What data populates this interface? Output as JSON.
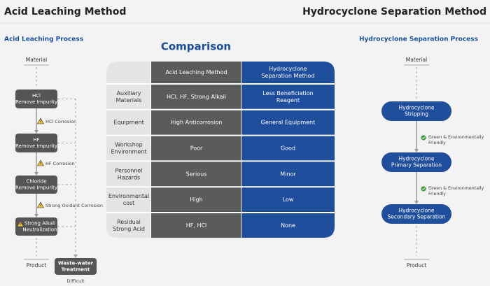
{
  "left": {
    "title": "Acid Leaching Method",
    "subtitle": "Acid Leaching Process",
    "flow": {
      "start": "Material",
      "steps": [
        {
          "label": [
            "HCl",
            "Remove Impurity"
          ],
          "note": "HCl Corrosion"
        },
        {
          "label": [
            "HF",
            "Remove Impurity"
          ],
          "note": "HF Corrosion"
        },
        {
          "label": [
            "Chloride",
            "Remove Impurity"
          ],
          "note": "Strong Oxidant Corrosion"
        },
        {
          "label": [
            "Strong Alkali",
            "Neutralization"
          ]
        }
      ],
      "end": "Product",
      "side": {
        "label": [
          "Waste-water",
          "Treatment"
        ],
        "note": "Difficult"
      }
    }
  },
  "comparison": {
    "title": "Comparison",
    "columns": [
      [
        "Acid Leaching Method"
      ],
      [
        "Hydrocyclone",
        "Separation Method"
      ]
    ],
    "rows": [
      {
        "label": [
          "Auxiliary",
          "Materials"
        ],
        "acid": [
          "HCl, HF, Strong Alkali"
        ],
        "hydro": [
          "Less Beneficiation",
          "Reagent"
        ]
      },
      {
        "label": [
          "Equipment"
        ],
        "acid": [
          "High Anticorrosion"
        ],
        "hydro": [
          "General Equipment"
        ]
      },
      {
        "label": [
          "Workshop",
          "Environment"
        ],
        "acid": [
          "Poor"
        ],
        "hydro": [
          "Good"
        ]
      },
      {
        "label": [
          "Personnel",
          "Hazards"
        ],
        "acid": [
          "Serious"
        ],
        "hydro": [
          "Minor"
        ]
      },
      {
        "label": [
          "Environmental",
          "cost"
        ],
        "acid": [
          "High"
        ],
        "hydro": [
          "Low"
        ]
      },
      {
        "label": [
          "Residual",
          "Strong Acid"
        ],
        "acid": [
          "HF, HCl"
        ],
        "hydro": [
          "None"
        ]
      }
    ]
  },
  "right": {
    "title": "Hydrocyclone Separation Method",
    "subtitle": "Hydrocyclone Separation Process",
    "flow": {
      "start": "Material",
      "steps": [
        {
          "label": [
            "Hydrocyclone",
            "Stripping"
          ],
          "note": [
            "Green & Environmentally",
            "Friendly"
          ]
        },
        {
          "label": [
            "Hydrocyclone",
            "Primary Separation"
          ],
          "note": [
            "Green & Environmentally",
            "Friendly"
          ]
        },
        {
          "label": [
            "Hydrocyclone",
            "Secondary Separation"
          ]
        }
      ],
      "end": "Product"
    }
  }
}
